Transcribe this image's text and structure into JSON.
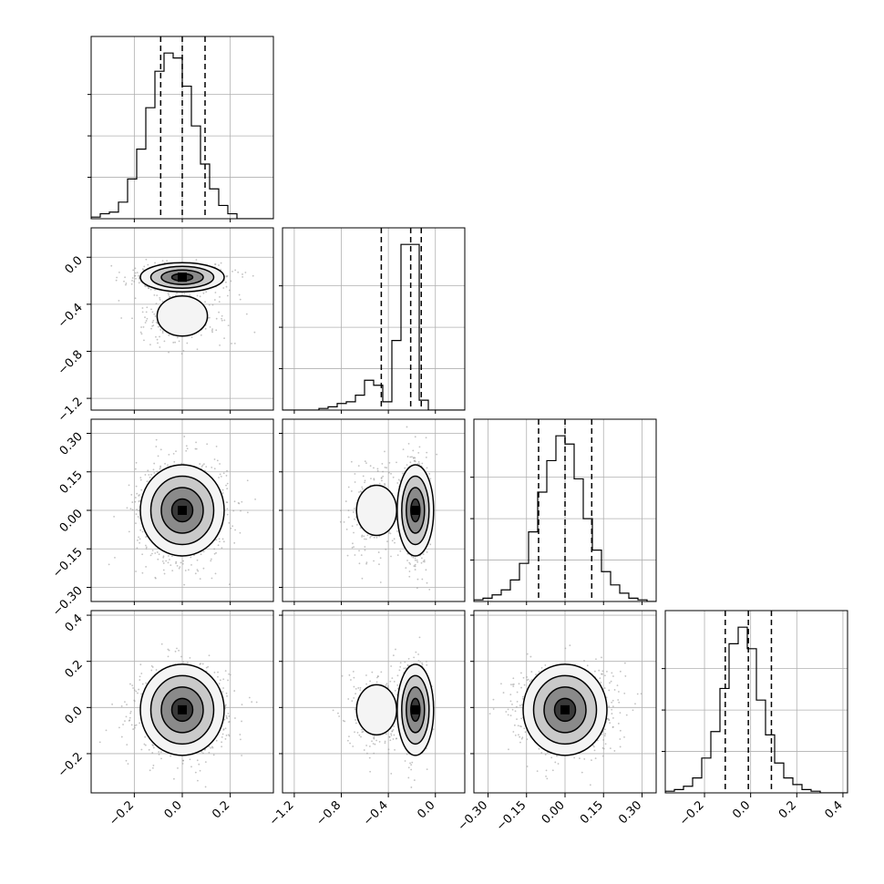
{
  "chart_data": {
    "type": "corner",
    "n_params": 4,
    "grid": true,
    "params": [
      {
        "range": [
          -0.38,
          0.38
        ],
        "ticks": [
          -0.2,
          0.0,
          0.2
        ],
        "tick_labels": [
          "−0.2",
          "0.0",
          "0.2"
        ],
        "quantiles": [
          -0.09,
          0.0,
          0.095
        ],
        "hist_edges_start": -0.38,
        "hist_bin_width": 0.038,
        "hist": [
          1,
          3,
          4,
          10,
          24,
          42,
          67,
          89,
          100,
          97,
          80,
          56,
          33,
          18,
          8,
          3,
          0,
          0,
          0,
          0
        ]
      },
      {
        "range": [
          -1.3,
          0.25
        ],
        "ticks": [
          -1.2,
          -0.8,
          -0.4,
          0.0
        ],
        "tick_labels": [
          "−1.2",
          "−0.8",
          "−0.4",
          "0.0"
        ],
        "quantiles": [
          -0.46,
          -0.21,
          -0.12
        ],
        "hist_edges_start": -1.3,
        "hist_bin_width": 0.0775,
        "hist": [
          0,
          0,
          0,
          0,
          1,
          2,
          4,
          5,
          9,
          18,
          15,
          5,
          42,
          100,
          100,
          6,
          0,
          0,
          0,
          0
        ]
      },
      {
        "range": [
          -0.355,
          0.355
        ],
        "ticks": [
          -0.3,
          -0.15,
          0.0,
          0.15,
          0.3
        ],
        "tick_labels": [
          "−0.30",
          "−0.15",
          "0.00",
          "0.15",
          "0.30"
        ],
        "quantiles": [
          -0.103,
          0.0,
          0.104
        ],
        "hist_edges_start": -0.355,
        "hist_bin_width": 0.0355,
        "hist": [
          1,
          2,
          4,
          7,
          13,
          23,
          42,
          66,
          85,
          100,
          95,
          74,
          50,
          31,
          18,
          10,
          5,
          2,
          1,
          0
        ]
      },
      {
        "range": [
          -0.37,
          0.42
        ],
        "ticks": [
          -0.2,
          0.0,
          0.2,
          0.4
        ],
        "tick_labels": [
          "−0.2",
          "0.0",
          "0.2",
          "0.4"
        ],
        "quantiles": [
          -0.11,
          -0.01,
          0.09
        ],
        "hist_edges_start": -0.37,
        "hist_bin_width": 0.0395,
        "hist": [
          1,
          2,
          4,
          9,
          21,
          37,
          63,
          90,
          100,
          87,
          56,
          35,
          18,
          9,
          5,
          2,
          1,
          0,
          0,
          0
        ]
      }
    ],
    "y_axis_ticks": {
      "row1": {
        "ticks": [
          0.0,
          -0.4,
          -0.8,
          -1.2
        ],
        "tick_labels": [
          "0.0",
          "−0.4",
          "−0.8",
          "−1.2"
        ]
      },
      "row2": {
        "ticks": [
          0.3,
          0.15,
          0.0,
          -0.15,
          -0.3
        ],
        "tick_labels": [
          "0.30",
          "0.15",
          "0.00",
          "−0.15",
          "−0.30"
        ]
      },
      "row3": {
        "ticks": [
          0.4,
          0.2,
          0.0,
          -0.2
        ],
        "tick_labels": [
          "0.4",
          "0.2",
          "0.0",
          "−0.2"
        ]
      }
    }
  },
  "colors": {
    "axis": "#000000",
    "grid": "#b0b0b0",
    "scatter": "#9a9a9a",
    "density_dark": "#000000",
    "density_light": "#ffffff"
  }
}
